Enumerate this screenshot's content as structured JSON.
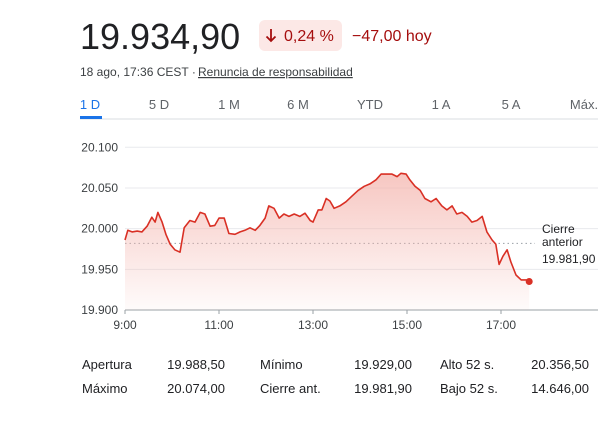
{
  "header": {
    "price": "19.934,90",
    "change_pct": "0,24 %",
    "change_abs": "−47,00 hoy",
    "timestamp": "18 ago, 17:36 CEST ·",
    "disclaimer": "Renuncia de responsabilidad"
  },
  "tabs": [
    "1 D",
    "5 D",
    "1 M",
    "6 M",
    "YTD",
    "1 A",
    "5 A",
    "Máx."
  ],
  "chart_data": {
    "type": "line",
    "color": "#d93025",
    "fill": "#f4b4ad",
    "x": [
      9.0,
      9.06,
      9.15,
      9.26,
      9.36,
      9.47,
      9.57,
      9.64,
      9.7,
      9.79,
      9.87,
      9.96,
      10.06,
      10.17,
      10.26,
      10.38,
      10.49,
      10.6,
      10.7,
      10.81,
      10.91,
      11.0,
      11.11,
      11.21,
      11.34,
      11.45,
      11.55,
      11.66,
      11.77,
      11.87,
      11.98,
      12.06,
      12.17,
      12.28,
      12.38,
      12.49,
      12.6,
      12.72,
      12.83,
      12.94,
      13.0,
      13.11,
      13.19,
      13.28,
      13.36,
      13.45,
      13.57,
      13.7,
      13.83,
      13.96,
      14.09,
      14.21,
      14.34,
      14.45,
      14.55,
      14.68,
      14.79,
      14.87,
      14.98,
      15.06,
      15.17,
      15.28,
      15.38,
      15.51,
      15.62,
      15.74,
      15.85,
      15.96,
      16.06,
      16.17,
      16.28,
      16.38,
      16.49,
      16.6,
      16.7,
      16.81,
      16.89,
      16.96,
      17.04,
      17.13,
      17.21,
      17.32,
      17.43,
      17.53,
      17.6
    ],
    "values": [
      19986,
      19998,
      19996,
      19997,
      19996,
      20003,
      20014,
      20008,
      20020,
      20008,
      19993,
      19981,
      19974,
      19971,
      20001,
      20010,
      20008,
      20020,
      20018,
      20003,
      20004,
      20013,
      20013,
      19994,
      19993,
      19996,
      19998,
      20001,
      19998,
      20004,
      20013,
      20028,
      20025,
      20013,
      20018,
      20015,
      20018,
      20015,
      20019,
      20010,
      20008,
      20023,
      20023,
      20037,
      20034,
      20025,
      20028,
      20033,
      20040,
      20047,
      20052,
      20055,
      20060,
      20067,
      20067,
      20067,
      20064,
      20068,
      20067,
      20060,
      20052,
      20047,
      20037,
      20033,
      20037,
      20028,
      20023,
      20028,
      20018,
      20020,
      20015,
      20008,
      20010,
      20015,
      19996,
      19986,
      19981,
      19956,
      19966,
      19974,
      19959,
      19943,
      19937,
      19937,
      19935
    ],
    "xlim": [
      9,
      19
    ],
    "xticks": [
      {
        "value": 9,
        "label": "9:00"
      },
      {
        "value": 11,
        "label": "11:00"
      },
      {
        "value": 13,
        "label": "13:00"
      },
      {
        "value": 15,
        "label": "15:00"
      },
      {
        "value": 17,
        "label": "17:00"
      }
    ],
    "ylim": [
      19900,
      20120
    ],
    "yticks": [
      {
        "value": 19900,
        "label": "19.900"
      },
      {
        "value": 19950,
        "label": "19.950"
      },
      {
        "value": 20000,
        "label": "20.000"
      },
      {
        "value": 20050,
        "label": "20.050"
      },
      {
        "value": 20100,
        "label": "20.100"
      }
    ],
    "grid": true,
    "reference": {
      "lines": [
        "Cierre",
        "anterior"
      ],
      "value": 19981.9,
      "value_label": "19.981,90"
    }
  },
  "stats": {
    "rows": [
      [
        "Apertura",
        "19.988,50",
        "Mínimo",
        "19.929,00",
        "Alto 52 s.",
        "20.356,50"
      ],
      [
        "Máximo",
        "20.074,00",
        "Cierre ant.",
        "19.981,90",
        "Bajo 52 s.",
        "14.646,00"
      ]
    ]
  }
}
